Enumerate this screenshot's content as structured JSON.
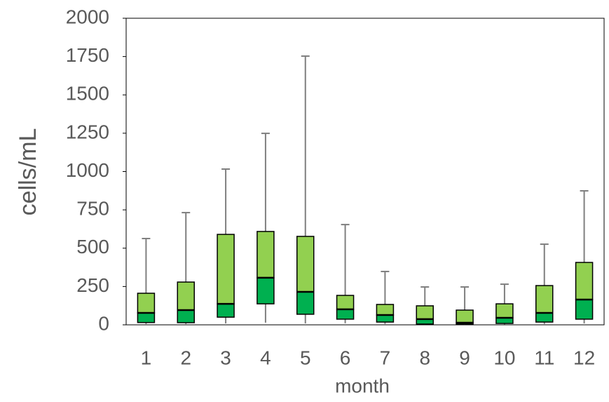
{
  "chart_data": {
    "type": "box",
    "y_label": "cells/mL",
    "x_label": "month",
    "categories": [
      "1",
      "2",
      "3",
      "4",
      "5",
      "6",
      "7",
      "8",
      "9",
      "10",
      "11",
      "12"
    ],
    "min": [
      5,
      5,
      9,
      14,
      9,
      10,
      5,
      2,
      2,
      3,
      5,
      9
    ],
    "q1": [
      15,
      14,
      50,
      137,
      69,
      37,
      18,
      5,
      5,
      9,
      18,
      37
    ],
    "median": [
      78,
      96,
      137,
      307,
      215,
      101,
      64,
      37,
      14,
      46,
      78,
      165
    ],
    "q3": [
      206,
      279,
      590,
      609,
      577,
      192,
      133,
      124,
      96,
      137,
      256,
      407
    ],
    "max": [
      563,
      732,
      1016,
      1249,
      1753,
      654,
      348,
      247,
      247,
      265,
      526,
      874
    ],
    "upper_color": "#92d050",
    "lower_color": "#00b050",
    "whisker_color": "#7f7f7f",
    "ylim": [
      0,
      2000
    ],
    "yticks": [
      0,
      250,
      500,
      750,
      1000,
      1250,
      1500,
      1750,
      2000
    ]
  }
}
